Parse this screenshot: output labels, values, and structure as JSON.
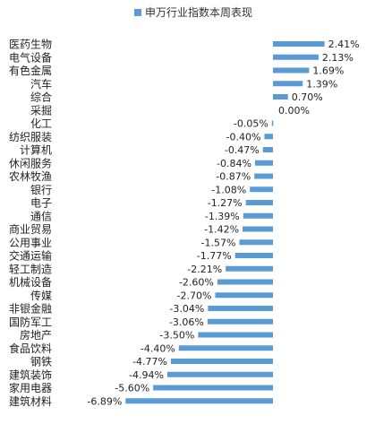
{
  "chart_data": {
    "type": "bar",
    "orientation": "horizontal",
    "title": "",
    "legend_position": "top",
    "grid": false,
    "series": [
      {
        "name": "申万行业指数本周表现",
        "color": "#5b9bd5"
      }
    ],
    "categories": [
      "医药生物",
      "电气设备",
      "有色金属",
      "汽车",
      "综合",
      "采掘",
      "化工",
      "纺织服装",
      "计算机",
      "休闲服务",
      "农林牧渔",
      "银行",
      "电子",
      "通信",
      "商业贸易",
      "公用事业",
      "交通运输",
      "轻工制造",
      "机械设备",
      "传媒",
      "非银金融",
      "国防军工",
      "房地产",
      "食品饮料",
      "钢铁",
      "建筑装饰",
      "家用电器",
      "建筑材料"
    ],
    "values": [
      2.41,
      2.13,
      1.69,
      1.39,
      0.7,
      0.0,
      -0.05,
      -0.4,
      -0.47,
      -0.84,
      -0.87,
      -1.08,
      -1.27,
      -1.39,
      -1.42,
      -1.57,
      -1.77,
      -2.21,
      -2.6,
      -2.7,
      -3.04,
      -3.06,
      -3.5,
      -4.4,
      -4.77,
      -4.94,
      -5.6,
      -6.89
    ],
    "value_labels": [
      "2.41%",
      "2.13%",
      "1.69%",
      "1.39%",
      "0.70%",
      "0.00%",
      "-0.05%",
      "-0.40%",
      "-0.47%",
      "-0.84%",
      "-0.87%",
      "-1.08%",
      "-1.27%",
      "-1.39%",
      "-1.42%",
      "-1.57%",
      "-1.77%",
      "-2.21%",
      "-2.60%",
      "-2.70%",
      "-3.04%",
      "-3.06%",
      "-3.50%",
      "-4.40%",
      "-4.77%",
      "-4.94%",
      "-5.60%",
      "-6.89%"
    ]
  }
}
